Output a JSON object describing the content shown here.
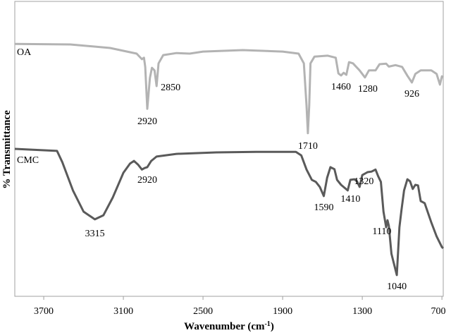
{
  "chart_data": {
    "type": "line",
    "title": "",
    "xlabel": "Wavenumber (cm-1)",
    "xlabel_main": "Wavenumber (cm",
    "xlabel_sup": "-1",
    "xlabel_close": ")",
    "ylabel": "% Transmittance",
    "xlim": [
      3918,
      690
    ],
    "xaxis_reversed": true,
    "ylim": [
      0,
      100
    ],
    "grid": false,
    "xticks": [
      3700,
      3100,
      2500,
      1900,
      1300,
      700
    ],
    "xtick_labels": [
      "3700",
      "3100",
      "2500",
      "1900",
      "1300",
      "700"
    ],
    "series": [
      {
        "name": "OA",
        "color": "#b3b3b3",
        "x": [
          3918,
          3500,
          3200,
          3000,
          2960,
          2945,
          2935,
          2920,
          2900,
          2885,
          2865,
          2850,
          2835,
          2800,
          2700,
          2600,
          2500,
          2200,
          1900,
          1780,
          1740,
          1720,
          1710,
          1700,
          1690,
          1660,
          1560,
          1500,
          1480,
          1460,
          1440,
          1420,
          1400,
          1370,
          1320,
          1280,
          1250,
          1200,
          1170,
          1120,
          1100,
          1050,
          1000,
          960,
          926,
          900,
          860,
          780,
          740,
          715,
          700,
          690
        ],
        "y": [
          85.6,
          85.4,
          84.2,
          82.3,
          80.4,
          80.9,
          77.8,
          63.6,
          74,
          77.5,
          76.6,
          71.3,
          79,
          81.8,
          82.5,
          82.3,
          83,
          83.5,
          83,
          82.3,
          79,
          64.6,
          55.3,
          64.6,
          79,
          81.3,
          81.6,
          80.9,
          75.6,
          74.9,
          75.8,
          75.1,
          79.4,
          79,
          76.6,
          74.2,
          76.6,
          76.6,
          78.7,
          78.9,
          77.9,
          78.4,
          77.8,
          74.8,
          72.5,
          75.4,
          76.6,
          76.6,
          75.4,
          71.8,
          74.6,
          74.2
        ]
      },
      {
        "name": "CMC",
        "color": "#5a5a5a",
        "x": [
          3918,
          3600,
          3560,
          3480,
          3400,
          3315,
          3250,
          3180,
          3100,
          3050,
          3020,
          2990,
          2960,
          2940,
          2920,
          2890,
          2850,
          2700,
          2400,
          2100,
          1800,
          1760,
          1720,
          1680,
          1650,
          1620,
          1590,
          1565,
          1540,
          1510,
          1490,
          1460,
          1410,
          1390,
          1360,
          1340,
          1320,
          1300,
          1260,
          1230,
          1200,
          1180,
          1160,
          1140,
          1120,
          1110,
          1100,
          1080,
          1040,
          1020,
          1005,
          985,
          960,
          940,
          920,
          900,
          880,
          860,
          830,
          780,
          740,
          700,
          690
        ],
        "y": [
          50,
          49.3,
          45.5,
          35.9,
          28.7,
          26.1,
          27.5,
          33.5,
          41.9,
          45,
          45.9,
          44.7,
          43,
          43.5,
          43.8,
          45.9,
          47.4,
          48.3,
          48.8,
          49,
          49,
          47.8,
          43,
          39.5,
          38.8,
          37.1,
          34,
          40.2,
          43.8,
          43.1,
          39.5,
          37.8,
          35.9,
          39.5,
          39.7,
          39,
          37.1,
          41.1,
          42.1,
          42.3,
          43,
          40.7,
          38.8,
          28.7,
          23.4,
          25.8,
          23.9,
          14.4,
          7.2,
          23.4,
          29.2,
          35.9,
          39.7,
          39,
          36.4,
          37.8,
          37.6,
          32.3,
          31.6,
          25.1,
          20.3,
          16.7,
          16.3
        ]
      }
    ],
    "series_labels": [
      "OA",
      "CMC"
    ],
    "annotations": [
      {
        "text": "2920",
        "x": 2920,
        "series": "OA"
      },
      {
        "text": "2850",
        "x": 2850,
        "series": "OA"
      },
      {
        "text": "1710",
        "x": 1710,
        "series": "OA"
      },
      {
        "text": "1460",
        "x": 1460,
        "series": "OA"
      },
      {
        "text": "1280",
        "x": 1280,
        "series": "OA"
      },
      {
        "text": "926",
        "x": 926,
        "series": "OA"
      },
      {
        "text": "3315",
        "x": 3315,
        "series": "CMC"
      },
      {
        "text": "2920",
        "x": 2920,
        "series": "CMC"
      },
      {
        "text": "1590",
        "x": 1590,
        "series": "CMC"
      },
      {
        "text": "1410",
        "x": 1410,
        "series": "CMC"
      },
      {
        "text": "1320",
        "x": 1320,
        "series": "CMC"
      },
      {
        "text": "1110",
        "x": 1110,
        "series": "CMC"
      },
      {
        "text": "1040",
        "x": 1040,
        "series": "CMC"
      }
    ],
    "frame_color": "#a0a0a0"
  }
}
